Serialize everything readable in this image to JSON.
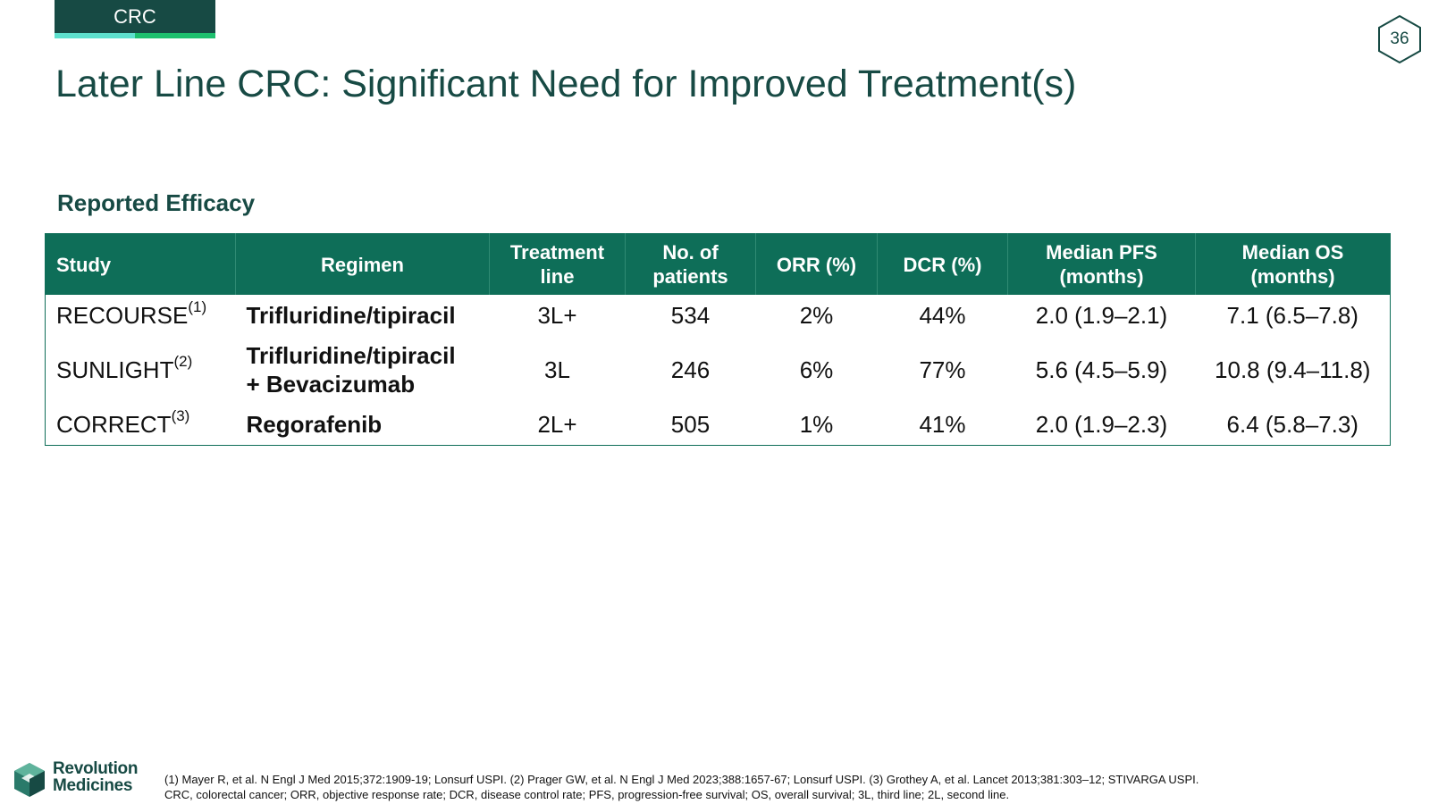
{
  "header": {
    "section_tab": "CRC",
    "page_number": "36",
    "title": "Later Line CRC: Significant Need for Improved Treatment(s)"
  },
  "section": {
    "subtitle": "Reported Efficacy"
  },
  "table": {
    "columns": [
      "Study",
      "Regimen",
      "Treatment line",
      "No. of patients",
      "ORR (%)",
      "DCR (%)",
      "Median PFS (months)",
      "Median OS (months)"
    ],
    "rows": [
      {
        "study": "RECOURSE",
        "ref": "(1)",
        "regimen_line1": "Trifluridine/tipiracil",
        "regimen_line2": "",
        "line": "3L+",
        "patients": "534",
        "orr": "2%",
        "dcr": "44%",
        "pfs": "2.0 (1.9–2.1)",
        "os": "7.1 (6.5–7.8)"
      },
      {
        "study": "SUNLIGHT",
        "ref": "(2)",
        "regimen_line1": "Trifluridine/tipiracil",
        "regimen_line2": "+ Bevacizumab",
        "line": "3L",
        "patients": "246",
        "orr": "6%",
        "dcr": "77%",
        "pfs": "5.6 (4.5–5.9)",
        "os": "10.8 (9.4–11.8)"
      },
      {
        "study": "CORRECT",
        "ref": "(3)",
        "regimen_line1": "Regorafenib",
        "regimen_line2": "",
        "line": "2L+",
        "patients": "505",
        "orr": "1%",
        "dcr": "41%",
        "pfs": "2.0 (1.9–2.3)",
        "os": "6.4 (5.8–7.3)"
      }
    ]
  },
  "footer": {
    "logo_line1": "Revolution",
    "logo_line2": "Medicines",
    "footnote_line1": "(1) Mayer R, et al. N Engl J Med 2015;372:1909-19; Lonsurf USPI. (2) Prager GW, et al. N Engl J Med 2023;388:1657-67; Lonsurf USPI. (3) Grothey A, et al. Lancet 2013;381:303–12; STIVARGA USPI.",
    "footnote_line2": "CRC, colorectal cancer; ORR, objective response rate; DCR, disease control rate; PFS, progression-free survival; OS, overall survival; 3L, third line; 2L, second line."
  },
  "colors": {
    "brand_dark": "#174a44",
    "table_header": "#0e6e58",
    "accent_teal": "#5ee0cd",
    "accent_green": "#1ec06e"
  }
}
